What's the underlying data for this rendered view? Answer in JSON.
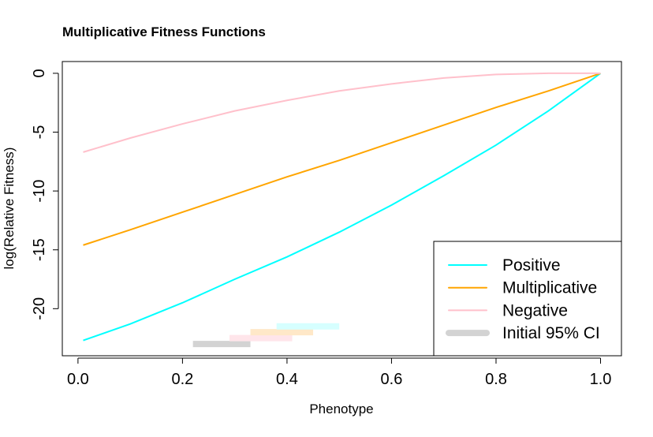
{
  "chart_data": {
    "type": "line",
    "title": "Multiplicative Fitness Functions",
    "xlabel": "Phenotype",
    "ylabel": "log(Relative Fitness)",
    "xlim": [
      -0.03,
      1.04
    ],
    "ylim": [
      -24,
      1
    ],
    "xticks": [
      0.0,
      0.2,
      0.4,
      0.6,
      0.8,
      1.0
    ],
    "xtick_labels": [
      "0.0",
      "0.2",
      "0.4",
      "0.6",
      "0.8",
      "1.0"
    ],
    "yticks": [
      0,
      -5,
      -10,
      -15,
      -20
    ],
    "ytick_labels": [
      "0",
      "-5",
      "-10",
      "-15",
      "-20"
    ],
    "grid": false,
    "legend_position": "bottom-right",
    "series": [
      {
        "name": "Positive",
        "color": "#00FFFF",
        "x": [
          0.01,
          0.1,
          0.2,
          0.3,
          0.4,
          0.5,
          0.6,
          0.7,
          0.8,
          0.9,
          1.0
        ],
        "y": [
          -22.7,
          -21.3,
          -19.5,
          -17.5,
          -15.6,
          -13.5,
          -11.2,
          -8.7,
          -6.1,
          -3.2,
          0.0
        ]
      },
      {
        "name": "Multiplicative",
        "color": "#FFA500",
        "x": [
          0.01,
          0.1,
          0.2,
          0.3,
          0.4,
          0.5,
          0.6,
          0.7,
          0.8,
          0.9,
          1.0
        ],
        "y": [
          -14.6,
          -13.3,
          -11.8,
          -10.3,
          -8.8,
          -7.4,
          -5.9,
          -4.4,
          -2.9,
          -1.5,
          0.0
        ]
      },
      {
        "name": "Negative",
        "color": "#FFC0CB",
        "x": [
          0.01,
          0.1,
          0.2,
          0.3,
          0.4,
          0.5,
          0.6,
          0.7,
          0.8,
          0.9,
          1.0
        ],
        "y": [
          -6.7,
          -5.5,
          -4.3,
          -3.2,
          -2.3,
          -1.5,
          -0.9,
          -0.4,
          -0.1,
          0.0,
          0.0
        ]
      }
    ],
    "intervals": [
      {
        "name": "Initial 95% CI",
        "color": "#D3D3D3",
        "x0": 0.22,
        "x1": 0.33,
        "y": -23.0
      },
      {
        "color": "#FFE5EA",
        "x0": 0.29,
        "x1": 0.41,
        "y": -22.5
      },
      {
        "color": "#FFE8C8",
        "x0": 0.33,
        "x1": 0.45,
        "y": -22.0
      },
      {
        "color": "#D6FFFF",
        "x0": 0.38,
        "x1": 0.5,
        "y": -21.5
      }
    ],
    "legend": [
      {
        "label": "Positive",
        "color": "#00FFFF",
        "style": "line"
      },
      {
        "label": "Multiplicative",
        "color": "#FFA500",
        "style": "line"
      },
      {
        "label": "Negative",
        "color": "#FFC0CB",
        "style": "line"
      },
      {
        "label": "Initial 95% CI",
        "color": "#D3D3D3",
        "style": "thick"
      }
    ]
  }
}
